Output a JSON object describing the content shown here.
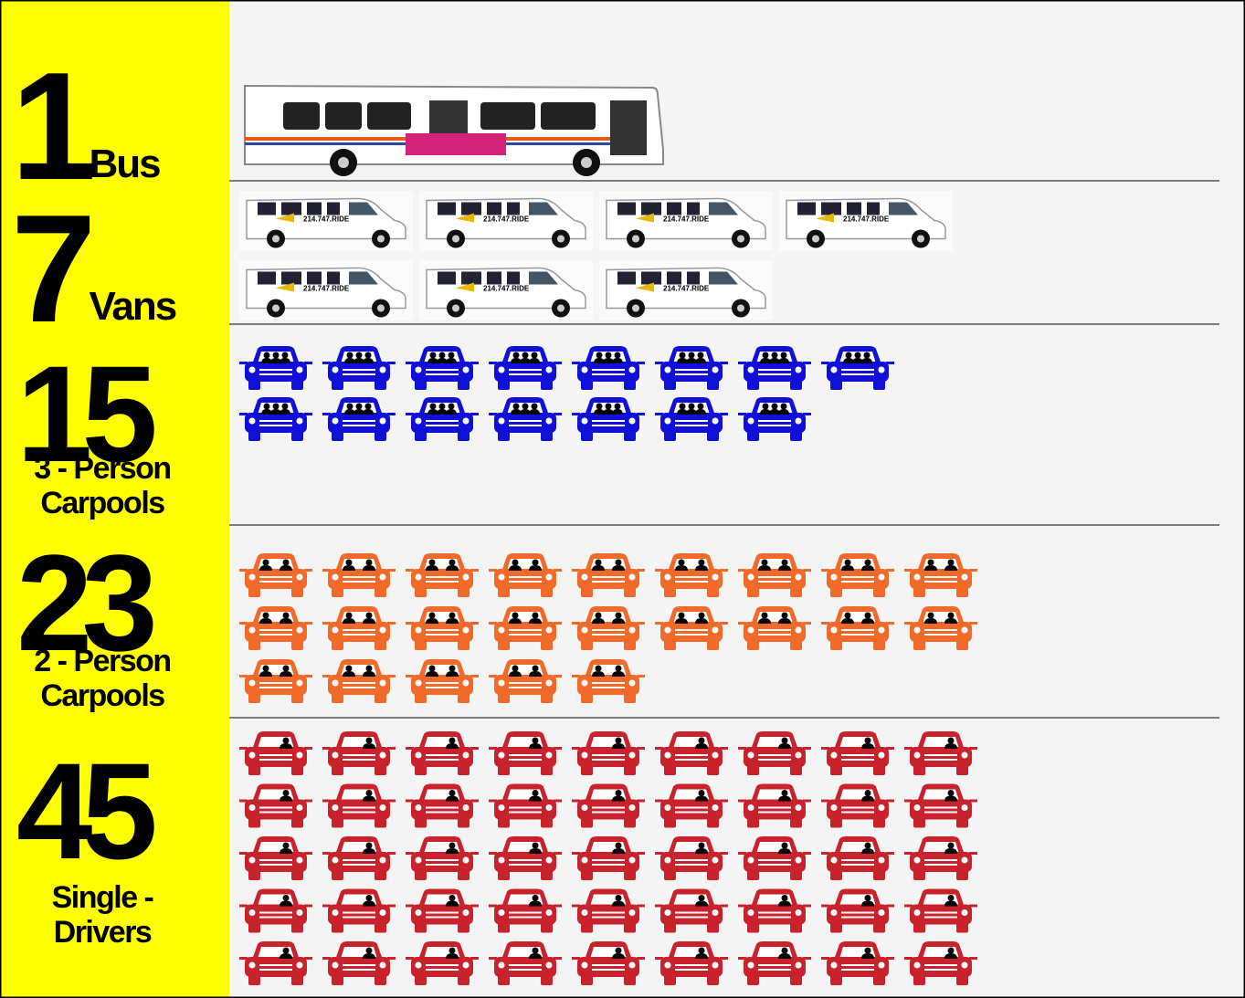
{
  "rows": [
    {
      "number": 1,
      "label_lines": [
        "Bus"
      ],
      "icon": "bus",
      "color": "#ffffff",
      "per_row": 1
    },
    {
      "number": 7,
      "label_lines": [
        "Vans"
      ],
      "icon": "van",
      "color": "#ffffff",
      "per_row": 4
    },
    {
      "number": 15,
      "label_lines": [
        "3 - Person",
        "Carpools"
      ],
      "icon": "car3",
      "color": "#1010d8",
      "per_row": 8
    },
    {
      "number": 23,
      "label_lines": [
        "2 - Person",
        "Carpools"
      ],
      "icon": "car2",
      "color": "#f26a2a",
      "per_row": 9
    },
    {
      "number": 45,
      "label_lines": [
        "Single -",
        "Drivers"
      ],
      "icon": "car1",
      "color": "#c8232c",
      "per_row": 9
    }
  ]
}
